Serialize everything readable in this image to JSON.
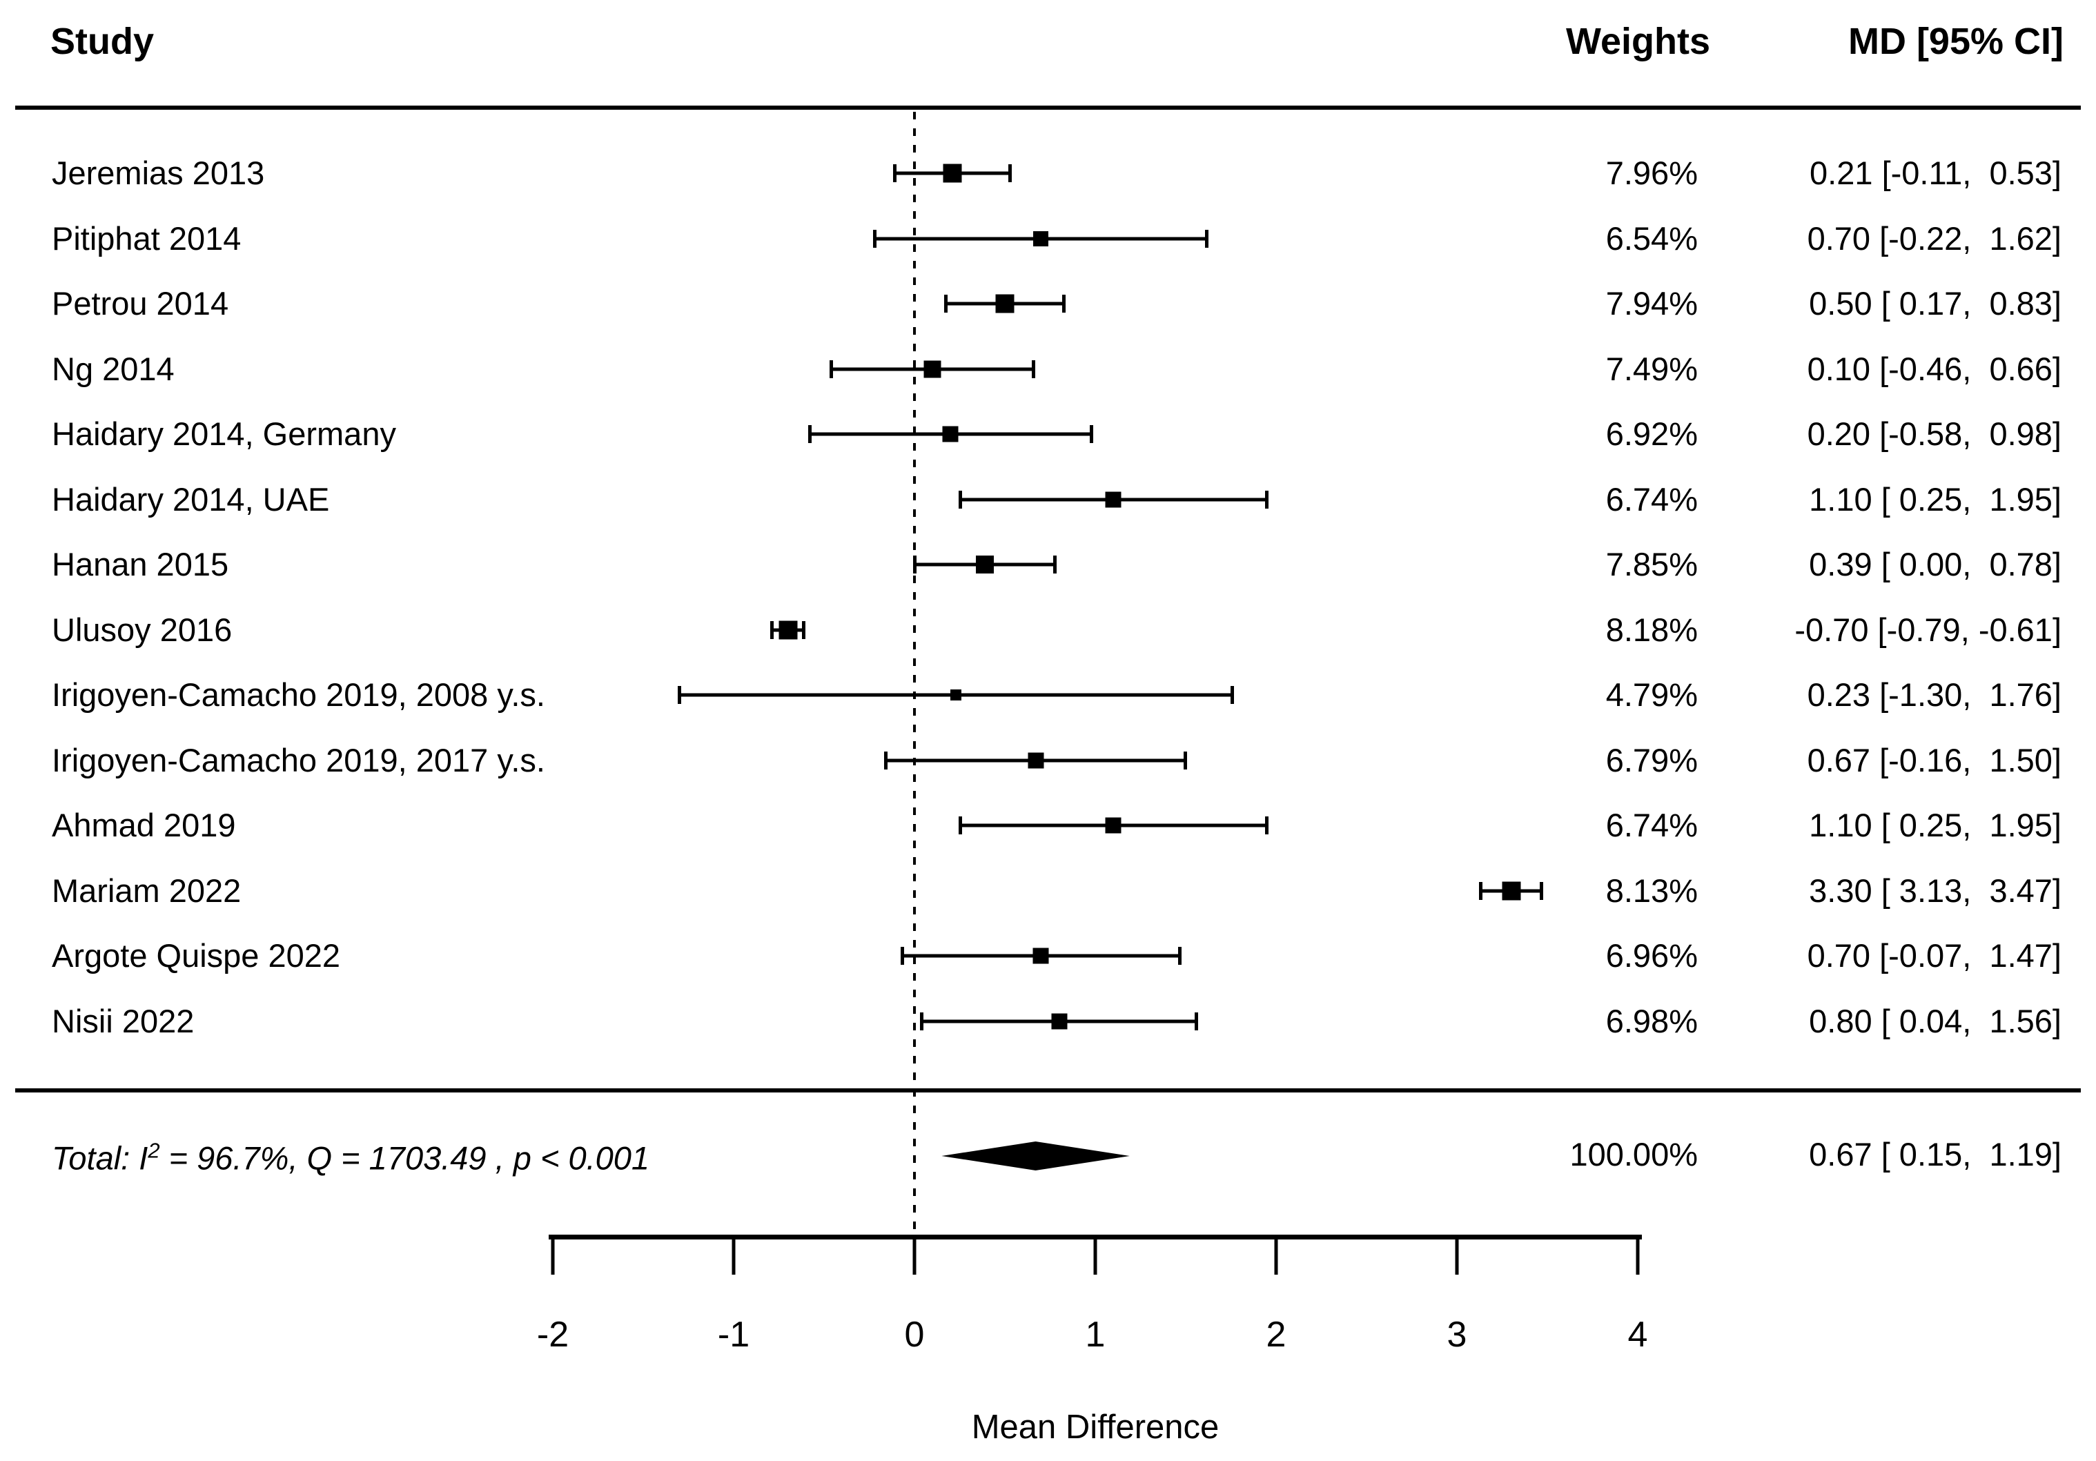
{
  "header": {
    "study": "Study",
    "weights": "Weights",
    "md_ci": "MD [95% CI]"
  },
  "chart_data": {
    "type": "forest",
    "xlabel": "Mean Difference",
    "xlim": [
      -2,
      4
    ],
    "x_ticks": [
      -2,
      -1,
      0,
      1,
      2,
      3,
      4
    ],
    "x_tick_labels": [
      "-2",
      "-1",
      "0",
      "1",
      "2",
      "3",
      "4"
    ],
    "zero_line_x": 0,
    "legend": "none",
    "grid": false,
    "colors": {
      "marker": "#000000",
      "text": "#000000",
      "background": "#ffffff"
    },
    "studies": [
      {
        "label": "Jeremias 2013",
        "weight_pct": 7.96,
        "weight_label": "7.96%",
        "md": 0.21,
        "ci_low": -0.11,
        "ci_high": 0.53,
        "md_ci_label": "0.21 [-0.11,  0.53]"
      },
      {
        "label": "Pitiphat 2014",
        "weight_pct": 6.54,
        "weight_label": "6.54%",
        "md": 0.7,
        "ci_low": -0.22,
        "ci_high": 1.62,
        "md_ci_label": "0.70 [-0.22,  1.62]"
      },
      {
        "label": "Petrou 2014",
        "weight_pct": 7.94,
        "weight_label": "7.94%",
        "md": 0.5,
        "ci_low": 0.17,
        "ci_high": 0.83,
        "md_ci_label": "0.50 [ 0.17,  0.83]"
      },
      {
        "label": "Ng 2014",
        "weight_pct": 7.49,
        "weight_label": "7.49%",
        "md": 0.1,
        "ci_low": -0.46,
        "ci_high": 0.66,
        "md_ci_label": "0.10 [-0.46,  0.66]"
      },
      {
        "label": "Haidary 2014, Germany",
        "weight_pct": 6.92,
        "weight_label": "6.92%",
        "md": 0.2,
        "ci_low": -0.58,
        "ci_high": 0.98,
        "md_ci_label": "0.20 [-0.58,  0.98]"
      },
      {
        "label": "Haidary 2014, UAE",
        "weight_pct": 6.74,
        "weight_label": "6.74%",
        "md": 1.1,
        "ci_low": 0.25,
        "ci_high": 1.95,
        "md_ci_label": "1.10 [ 0.25,  1.95]"
      },
      {
        "label": "Hanan 2015",
        "weight_pct": 7.85,
        "weight_label": "7.85%",
        "md": 0.39,
        "ci_low": 0.0,
        "ci_high": 0.78,
        "md_ci_label": "0.39 [ 0.00,  0.78]"
      },
      {
        "label": "Ulusoy 2016",
        "weight_pct": 8.18,
        "weight_label": "8.18%",
        "md": -0.7,
        "ci_low": -0.79,
        "ci_high": -0.61,
        "md_ci_label": "-0.70 [-0.79, -0.61]"
      },
      {
        "label": "Irigoyen-Camacho 2019, 2008 y.s.",
        "weight_pct": 4.79,
        "weight_label": "4.79%",
        "md": 0.23,
        "ci_low": -1.3,
        "ci_high": 1.76,
        "md_ci_label": "0.23 [-1.30,  1.76]"
      },
      {
        "label": "Irigoyen-Camacho 2019, 2017 y.s.",
        "weight_pct": 6.79,
        "weight_label": "6.79%",
        "md": 0.67,
        "ci_low": -0.16,
        "ci_high": 1.5,
        "md_ci_label": "0.67 [-0.16,  1.50]"
      },
      {
        "label": "Ahmad 2019",
        "weight_pct": 6.74,
        "weight_label": "6.74%",
        "md": 1.1,
        "ci_low": 0.25,
        "ci_high": 1.95,
        "md_ci_label": "1.10 [ 0.25,  1.95]"
      },
      {
        "label": "Mariam 2022",
        "weight_pct": 8.13,
        "weight_label": "8.13%",
        "md": 3.3,
        "ci_low": 3.13,
        "ci_high": 3.47,
        "md_ci_label": "3.30 [ 3.13,  3.47]"
      },
      {
        "label": "Argote Quispe 2022",
        "weight_pct": 6.96,
        "weight_label": "6.96%",
        "md": 0.7,
        "ci_low": -0.07,
        "ci_high": 1.47,
        "md_ci_label": "0.70 [-0.07,  1.47]"
      },
      {
        "label": "Nisii 2022",
        "weight_pct": 6.98,
        "weight_label": "6.98%",
        "md": 0.8,
        "ci_low": 0.04,
        "ci_high": 1.56,
        "md_ci_label": "0.80 [ 0.04,  1.56]"
      }
    ],
    "total": {
      "label_prefix": "Total: I",
      "label_sup": "2",
      "label_suffix": " = 96.7%, Q = 1703.49 , p < 0.001",
      "weight_pct": 100.0,
      "weight_label": "100.00%",
      "md": 0.67,
      "ci_low": 0.15,
      "ci_high": 1.19,
      "md_ci_label": "0.67 [ 0.15,  1.19]"
    }
  }
}
